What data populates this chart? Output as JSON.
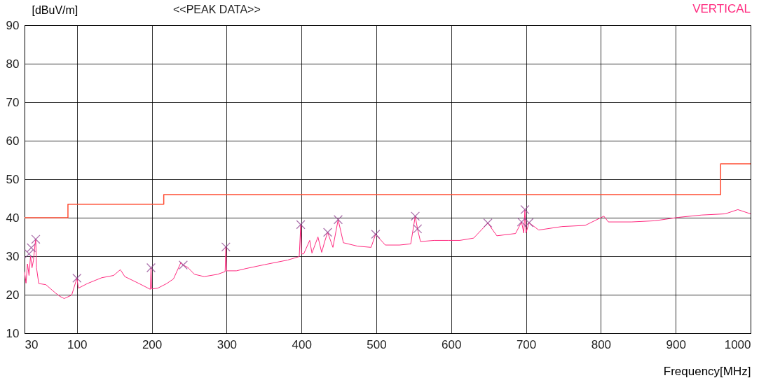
{
  "chart_data": {
    "type": "line",
    "title": "<<PEAK DATA>>",
    "xlabel": "Frequency[MHz]",
    "ylabel": "[dBuV/m]",
    "annotations": [
      "VERTICAL"
    ],
    "xlim": [
      30,
      1000
    ],
    "xticks": [
      30,
      100,
      200,
      300,
      400,
      500,
      600,
      700,
      800,
      900,
      1000
    ],
    "ylim": [
      10,
      90
    ],
    "yticks": [
      10,
      20,
      30,
      40,
      50,
      60,
      70,
      80,
      90
    ],
    "grid": true,
    "line_style": "solid",
    "series": [
      {
        "color": "#ff2a7f",
        "x": [
          30,
          32,
          34,
          36,
          38,
          40,
          42,
          44,
          45,
          46,
          49,
          58.5,
          71,
          77,
          83,
          93,
          100,
          102,
          114,
          133,
          149,
          158,
          164,
          183,
          198,
          199,
          200,
          208,
          220,
          229,
          239,
          242,
          248,
          257,
          270,
          288,
          298,
          299,
          300,
          313,
          326,
          350.5,
          381.6,
          397,
          399,
          400,
          403,
          411,
          414,
          422,
          427,
          431,
          435,
          442,
          449,
          456,
          475,
          493,
          499,
          512,
          531,
          546,
          552,
          555,
          559,
          577,
          596,
          611.5,
          630,
          649,
          661,
          686,
          694,
          697,
          698.5,
          700,
          704,
          717,
          748,
          779,
          804,
          810,
          841,
          872,
          904,
          935,
          966,
          983,
          1000
        ],
        "values": [
          26,
          23,
          28,
          25,
          30,
          27,
          29,
          33,
          34.4,
          27,
          22.9,
          22.6,
          20.5,
          19.6,
          19,
          19.9,
          24.3,
          21.7,
          22.9,
          24.4,
          25,
          26.5,
          24.7,
          22.9,
          21.4,
          27,
          21.5,
          21.7,
          22.9,
          24.1,
          28.4,
          27.7,
          27.1,
          25.3,
          24.7,
          25.3,
          26,
          32.4,
          26.2,
          26.2,
          26.8,
          27.8,
          29,
          29.9,
          38.2,
          30.6,
          30.6,
          34.1,
          30.8,
          35,
          31,
          33.8,
          36.2,
          32.3,
          39.5,
          33.5,
          32.6,
          32.3,
          35.7,
          32.9,
          32.9,
          33.2,
          40.4,
          37.1,
          33.8,
          34.1,
          34.1,
          34.1,
          34.7,
          38.6,
          35.3,
          35.9,
          38.9,
          36,
          42.1,
          36,
          38.7,
          36.8,
          37.7,
          38,
          40.4,
          38.9,
          38.9,
          39.2,
          40.1,
          40.7,
          41,
          42.1,
          41
        ]
      },
      {
        "type": "step",
        "color": "#ff4d33",
        "x": [
          30,
          88,
          216,
          960,
          1000
        ],
        "values": [
          40,
          43.5,
          46,
          54,
          54
        ]
      },
      {
        "type": "scatter",
        "color": "#8b3a8b",
        "marker": "cross",
        "x": [
          36,
          39,
          45,
          100,
          199,
          242,
          299,
          399,
          435,
          449,
          499,
          552,
          555,
          649,
          694,
          698.5,
          704
        ],
        "values": [
          30.6,
          32.2,
          34.4,
          24.3,
          27,
          27.7,
          32.4,
          38.2,
          36.2,
          39.5,
          35.7,
          40.4,
          37.1,
          38.6,
          38.9,
          42.1,
          38.7
        ]
      }
    ]
  }
}
